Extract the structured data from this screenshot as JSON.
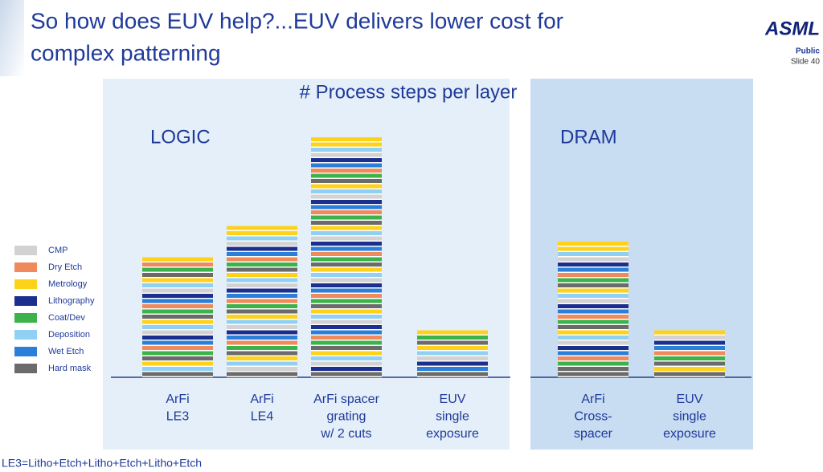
{
  "header": {
    "title_lines": [
      "So how does EUV help?...EUV delivers lower cost for",
      "complex patterning"
    ],
    "logo": "ASML",
    "classification": "Public",
    "slide": "Slide 40"
  },
  "chart_data": {
    "type": "bar",
    "title": "# Process steps per layer",
    "groups": [
      {
        "label": "LOGIC",
        "categories": [
          [
            "ArFi",
            "LE3"
          ],
          [
            "ArFi",
            "LE4"
          ],
          [
            "ArFi spacer",
            "grating",
            "w/ 2 cuts"
          ],
          [
            "EUV",
            "single",
            "exposure"
          ]
        ],
        "values": [
          23,
          29,
          46,
          9
        ]
      },
      {
        "label": "DRAM",
        "categories": [
          [
            "ArFi",
            "Cross-",
            "spacer"
          ],
          [
            "EUV",
            "single",
            "exposure"
          ]
        ],
        "values": [
          26,
          9
        ]
      }
    ],
    "legend": [
      {
        "name": "CMP",
        "color": "#d2d2d2"
      },
      {
        "name": "Dry Etch",
        "color": "#f0895c"
      },
      {
        "name": "Metrology",
        "color": "#ffd21a"
      },
      {
        "name": "Lithography",
        "color": "#1b2f8e"
      },
      {
        "name": "Coat/Dev",
        "color": "#3bb34a"
      },
      {
        "name": "Deposition",
        "color": "#90d0f4"
      },
      {
        "name": "Wet Etch",
        "color": "#2b7fd8"
      },
      {
        "name": "Hard mask",
        "color": "#6b6b6b"
      }
    ]
  },
  "footnote": "LE3=Litho+Etch+Litho+Etch+Litho+Etch"
}
